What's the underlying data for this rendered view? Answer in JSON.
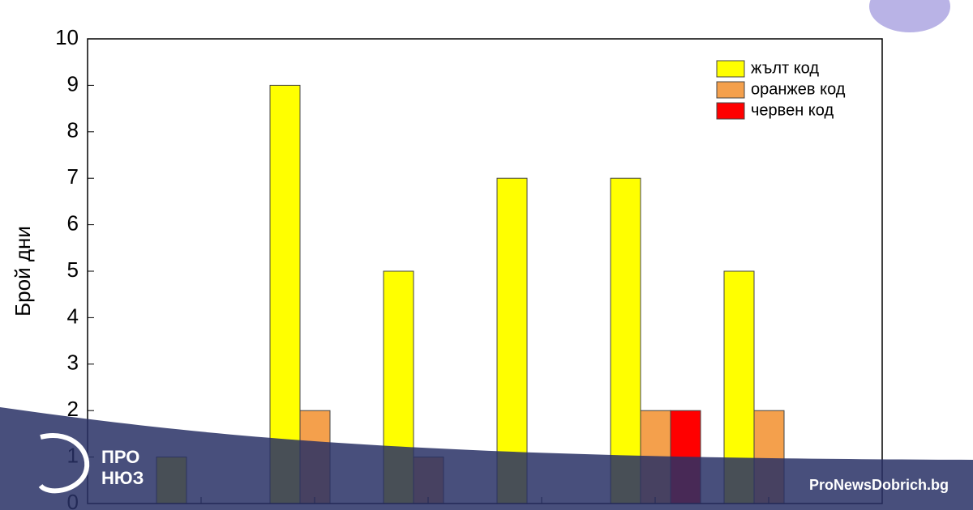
{
  "chart_data": {
    "type": "bar",
    "y_label": "Брой дни",
    "categories": [
      null,
      null,
      null,
      null,
      null,
      null
    ],
    "series": [
      {
        "name": "жълт код",
        "color": "#ffff00",
        "values": [
          1,
          9,
          5,
          7,
          7,
          5
        ]
      },
      {
        "name": "оранжев код",
        "color": "#f4a04c",
        "values": [
          0,
          2,
          1,
          0,
          2,
          2
        ]
      },
      {
        "name": "червен код",
        "color": "#ff0000",
        "values": [
          0,
          0,
          0,
          0,
          2,
          0
        ]
      }
    ],
    "ylim": [
      0,
      10
    ],
    "yticks": [
      0,
      1,
      2,
      3,
      4,
      5,
      6,
      7,
      8,
      9,
      10
    ],
    "grid": false,
    "legend": "upper right"
  },
  "brand": {
    "logo_top": "ПРО",
    "logo_bottom": "НЮЗ",
    "site": "ProNewsDobrich.bg"
  }
}
